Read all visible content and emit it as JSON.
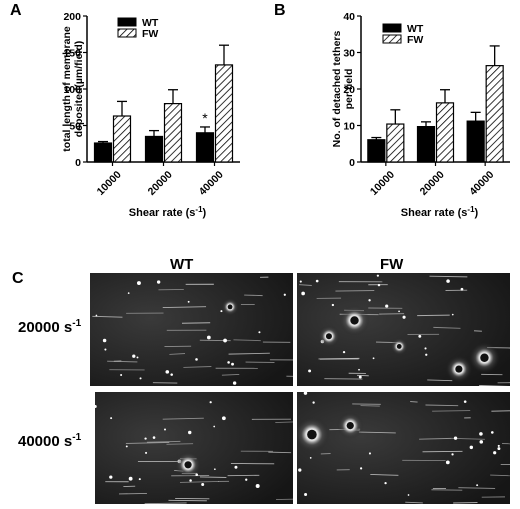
{
  "panels": {
    "a": "A",
    "b": "B",
    "c": "C"
  },
  "chart_data": [
    {
      "type": "bar",
      "title": "",
      "xlabel": "Shear rate (s",
      "xlabel_sup": "-1",
      "xlabel_end": ")",
      "ylabel_line1": "total length of membrane",
      "ylabel_line2": "deposited(µm/field)",
      "ylim": [
        0,
        200
      ],
      "yticks": [
        "0",
        "50",
        "100",
        "150",
        "200"
      ],
      "categories": [
        "10000",
        "20000",
        "40000"
      ],
      "legend_position": "top-left",
      "series": [
        {
          "name": "WT",
          "values": [
            26,
            35,
            40
          ],
          "errors": [
            2,
            8,
            8
          ],
          "color": "#000000",
          "pattern": "solid"
        },
        {
          "name": "FW",
          "values": [
            63,
            80,
            133
          ],
          "errors": [
            20,
            19,
            27
          ],
          "color": "#ffffff",
          "pattern": "hatch"
        }
      ],
      "annotations": [
        {
          "category": "40000",
          "series": "WT",
          "text": "*"
        }
      ]
    },
    {
      "type": "bar",
      "title": "",
      "xlabel": "Shear rate (s",
      "xlabel_sup": "-1",
      "xlabel_end": ")",
      "ylabel_line1": "No. of detached tethers",
      "ylabel_line2": "per field",
      "ylim": [
        0,
        40
      ],
      "yticks": [
        "0",
        "10",
        "20",
        "30",
        "40"
      ],
      "categories": [
        "10000",
        "20000",
        "40000"
      ],
      "legend_position": "top-left",
      "series": [
        {
          "name": "WT",
          "values": [
            6.1,
            9.7,
            11.2
          ],
          "errors": [
            0.6,
            1.3,
            2.4
          ],
          "color": "#000000",
          "pattern": "solid"
        },
        {
          "name": "FW",
          "values": [
            10.4,
            16.2,
            26.4
          ],
          "errors": [
            3.9,
            3.6,
            5.4
          ],
          "color": "#ffffff",
          "pattern": "hatch"
        }
      ],
      "annotations": []
    }
  ],
  "micrographs": {
    "columns": [
      "WT",
      "FW"
    ],
    "rows": [
      {
        "label": "20000 s",
        "sup": "-1"
      },
      {
        "label": "40000 s",
        "sup": "-1"
      }
    ]
  }
}
